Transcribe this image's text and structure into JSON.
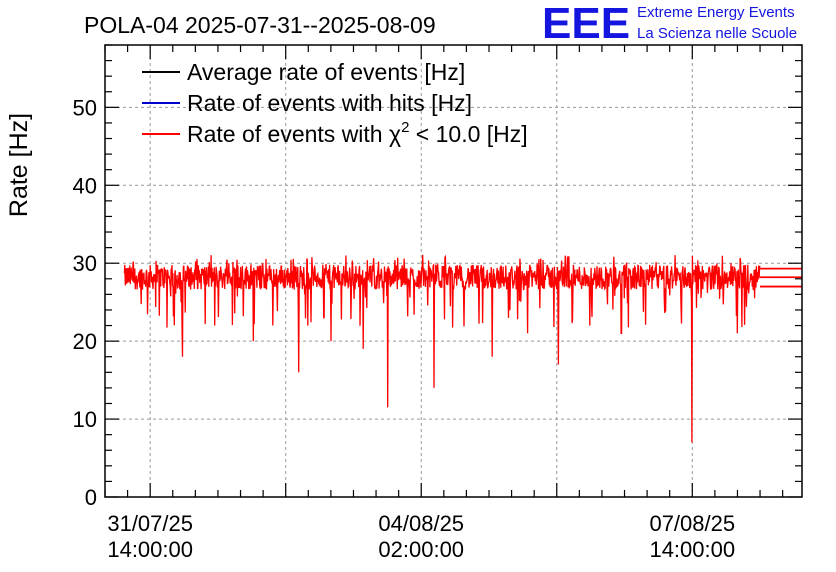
{
  "chart_data": {
    "type": "line",
    "title": "POLA-04 2025-07-31--2025-08-09",
    "ylabel": "Rate [Hz]",
    "xlabel": "",
    "ylim": [
      0,
      58
    ],
    "yticks": [
      0,
      10,
      20,
      30,
      40,
      50
    ],
    "x_ticks": [
      {
        "date": "31/07/25",
        "time": "14:00:00",
        "t_hours": 14
      },
      {
        "date": "04/08/25",
        "time": "02:00:00",
        "t_hours": 98
      },
      {
        "date": "07/08/25",
        "time": "14:00:00",
        "t_hours": 182
      }
    ],
    "x_axis_start": "2025-07-31 00:00:00",
    "x_axis_end": "2025-08-09 00:00:00",
    "grid": true,
    "legend_position": "top-left",
    "series": [
      {
        "name": "Average rate of events [Hz]",
        "color": "#000000",
        "mean": 28.2
      },
      {
        "name": "Rate of events with hits [Hz]",
        "color": "#0000cc",
        "mean": 28.2
      },
      {
        "name": "Rate of events with χ² < 10.0 [Hz]",
        "color": "#ff0000",
        "mean": 28.2,
        "band_low": 24,
        "band_high": 31,
        "dips": [
          {
            "t_hours": 87.6,
            "value": 11.5
          },
          {
            "t_hours": 181.9,
            "value": 7
          },
          {
            "t_hours": 102.0,
            "value": 14
          },
          {
            "t_hours": 60.0,
            "value": 16
          },
          {
            "t_hours": 140.5,
            "value": 17
          },
          {
            "t_hours": 24.0,
            "value": 18
          },
          {
            "t_hours": 120.0,
            "value": 18
          },
          {
            "t_hours": 80.0,
            "value": 19
          },
          {
            "t_hours": 46.0,
            "value": 20
          },
          {
            "t_hours": 70.0,
            "value": 20
          },
          {
            "t_hours": 160.0,
            "value": 21
          },
          {
            "t_hours": 196.0,
            "value": 21
          },
          {
            "t_hours": 210.0,
            "value": 20
          },
          {
            "t_hours": 216.5,
            "value": 22
          },
          {
            "t_hours": 34.0,
            "value": 22
          },
          {
            "t_hours": 131.0,
            "value": 21
          }
        ]
      }
    ]
  },
  "legend": {
    "items": [
      {
        "label": "Average rate of events [Hz]",
        "color": "#000000"
      },
      {
        "label": "Rate of events with hits [Hz]",
        "color": "#0000cc"
      },
      {
        "label_pre": "Rate of events with ",
        "label_sym": "χ",
        "label_sup": "2",
        "label_post": " < 10.0 [Hz]",
        "color": "#ff0000"
      }
    ]
  },
  "logo": {
    "big": "EEE",
    "line1": "Extreme Energy Events",
    "line2": "La Scienza nelle Scuole"
  }
}
